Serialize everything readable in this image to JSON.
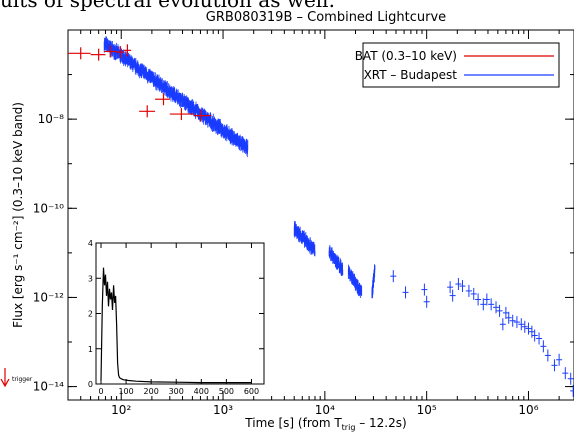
{
  "page": {
    "top_text": "ults of spectral evolution as well."
  },
  "chart_data": {
    "type": "scatter",
    "title": "GRB080319B – Combined Lightcurve",
    "xlabel": "Time [s]   (from T",
    "xlabel_sub": "trig",
    "xlabel_tail": " – 12.2s)",
    "ylabel": "Flux [erg s⁻¹ cm⁻²] (0.3–10 keV band)",
    "x_scale": "log",
    "y_scale": "log",
    "xlim": [
      30,
      2800000
    ],
    "ylim": [
      5e-15,
      1e-06
    ],
    "x_ticks": [
      {
        "value": 100,
        "label": "10²"
      },
      {
        "value": 1000,
        "label": "10³"
      },
      {
        "value": 10000,
        "label": "10⁴"
      },
      {
        "value": 100000,
        "label": "10⁵"
      },
      {
        "value": 1000000,
        "label": "10⁶"
      }
    ],
    "y_ticks": [
      {
        "value": 1e-08,
        "label": "10⁻⁸"
      },
      {
        "value": 1e-10,
        "label": "10⁻¹⁰"
      },
      {
        "value": 1e-12,
        "label": "10⁻¹²"
      },
      {
        "value": 1e-14,
        "label": "10⁻¹⁴"
      }
    ],
    "legend_position": "top-right",
    "series": [
      {
        "name": "BAT (0.3–10 keV)",
        "color": "#e00000",
        "points": [
          {
            "x": 40,
            "y": 3e-07,
            "x_lo": 30,
            "x_hi": 50
          },
          {
            "x": 60,
            "y": 2.8e-07,
            "x_lo": 50,
            "x_hi": 70
          },
          {
            "x": 78,
            "y": 3.3e-07,
            "x_lo": 68,
            "x_hi": 90
          },
          {
            "x": 98,
            "y": 3.2e-07,
            "x_lo": 88,
            "x_hi": 108
          },
          {
            "x": 115,
            "y": 3.5e-07,
            "x_lo": 106,
            "x_hi": 125
          },
          {
            "x": 180,
            "y": 1.5e-08,
            "x_lo": 150,
            "x_hi": 215
          },
          {
            "x": 260,
            "y": 2.8e-08,
            "x_lo": 215,
            "x_hi": 300
          },
          {
            "x": 390,
            "y": 1.3e-08,
            "x_lo": 300,
            "x_hi": 520
          },
          {
            "x": 600,
            "y": 1.2e-08,
            "x_lo": 520,
            "x_hi": 760
          }
        ]
      },
      {
        "name": "XRT – Budapest",
        "color": "#1a3cff",
        "segments": [
          {
            "t_start": 68,
            "t_end": 1750,
            "f_start": 5e-07,
            "f_end": 2.2e-09
          },
          {
            "t_start": 5000,
            "t_end": 8000,
            "f_start": 3.5e-11,
            "f_end": 1.1e-11
          },
          {
            "t_start": 11000,
            "t_end": 15000,
            "f_start": 1.1e-11,
            "f_end": 4e-12
          },
          {
            "t_start": 17000,
            "t_end": 23000,
            "f_start": 4e-12,
            "f_end": 1.3e-12
          },
          {
            "t_start": 29000,
            "t_end": 31000,
            "f_start": 1.1e-12,
            "f_end": 4.5e-12
          }
        ],
        "points": [
          {
            "x": 47000,
            "y": 3e-12
          },
          {
            "x": 62000,
            "y": 1.3e-12
          },
          {
            "x": 95000,
            "y": 1.5e-12
          },
          {
            "x": 100000,
            "y": 8e-13
          },
          {
            "x": 170000,
            "y": 1.7e-12
          },
          {
            "x": 180000,
            "y": 1.1e-12
          },
          {
            "x": 205000,
            "y": 2e-12
          },
          {
            "x": 225000,
            "y": 1.8e-12
          },
          {
            "x": 260000,
            "y": 1.4e-12
          },
          {
            "x": 290000,
            "y": 1.2e-12
          },
          {
            "x": 320000,
            "y": 9e-13
          },
          {
            "x": 360000,
            "y": 7e-13
          },
          {
            "x": 390000,
            "y": 9e-13
          },
          {
            "x": 430000,
            "y": 7e-13
          },
          {
            "x": 480000,
            "y": 6e-13
          },
          {
            "x": 520000,
            "y": 5e-13
          },
          {
            "x": 560000,
            "y": 2.5e-13
          },
          {
            "x": 600000,
            "y": 4.5e-13
          },
          {
            "x": 640000,
            "y": 3.5e-13
          },
          {
            "x": 700000,
            "y": 3e-13
          },
          {
            "x": 770000,
            "y": 2.8e-13
          },
          {
            "x": 850000,
            "y": 2.5e-13
          },
          {
            "x": 920000,
            "y": 2.2e-13
          },
          {
            "x": 1000000,
            "y": 2e-13
          },
          {
            "x": 1080000,
            "y": 1.7e-13
          },
          {
            "x": 1150000,
            "y": 1.4e-13
          },
          {
            "x": 1270000,
            "y": 1.2e-13
          },
          {
            "x": 1400000,
            "y": 8e-14
          },
          {
            "x": 1550000,
            "y": 5e-14
          },
          {
            "x": 1800000,
            "y": 3e-14
          },
          {
            "x": 2000000,
            "y": 4e-14
          },
          {
            "x": 2300000,
            "y": 2e-14
          },
          {
            "x": 2600000,
            "y": 1.5e-14
          },
          {
            "x": 2750000,
            "y": 8e-15
          }
        ]
      }
    ],
    "annotations": [
      {
        "text": "trigger",
        "kind": "arrow-marker"
      }
    ],
    "inset": {
      "type": "line",
      "xlim": [
        -20,
        650
      ],
      "ylim": [
        0,
        4
      ],
      "x_ticks": [
        0,
        100,
        200,
        300,
        400,
        500,
        600
      ],
      "y_ticks": [
        0,
        1,
        2,
        3,
        4
      ],
      "color": "#000000",
      "x": [
        0,
        5,
        10,
        14,
        18,
        22,
        26,
        30,
        34,
        38,
        42,
        46,
        50,
        54,
        58,
        62,
        66,
        70,
        74,
        80,
        90,
        110,
        140,
        200,
        300,
        400,
        500,
        600
      ],
      "y": [
        0.1,
        2.2,
        3.3,
        2.8,
        3.1,
        2.5,
        2.9,
        2.2,
        2.7,
        2.4,
        2.6,
        2.1,
        2.8,
        2.3,
        2.5,
        1.7,
        0.6,
        0.25,
        0.18,
        0.15,
        0.12,
        0.1,
        0.08,
        0.06,
        0.05,
        0.04,
        0.04,
        0.04
      ]
    }
  }
}
